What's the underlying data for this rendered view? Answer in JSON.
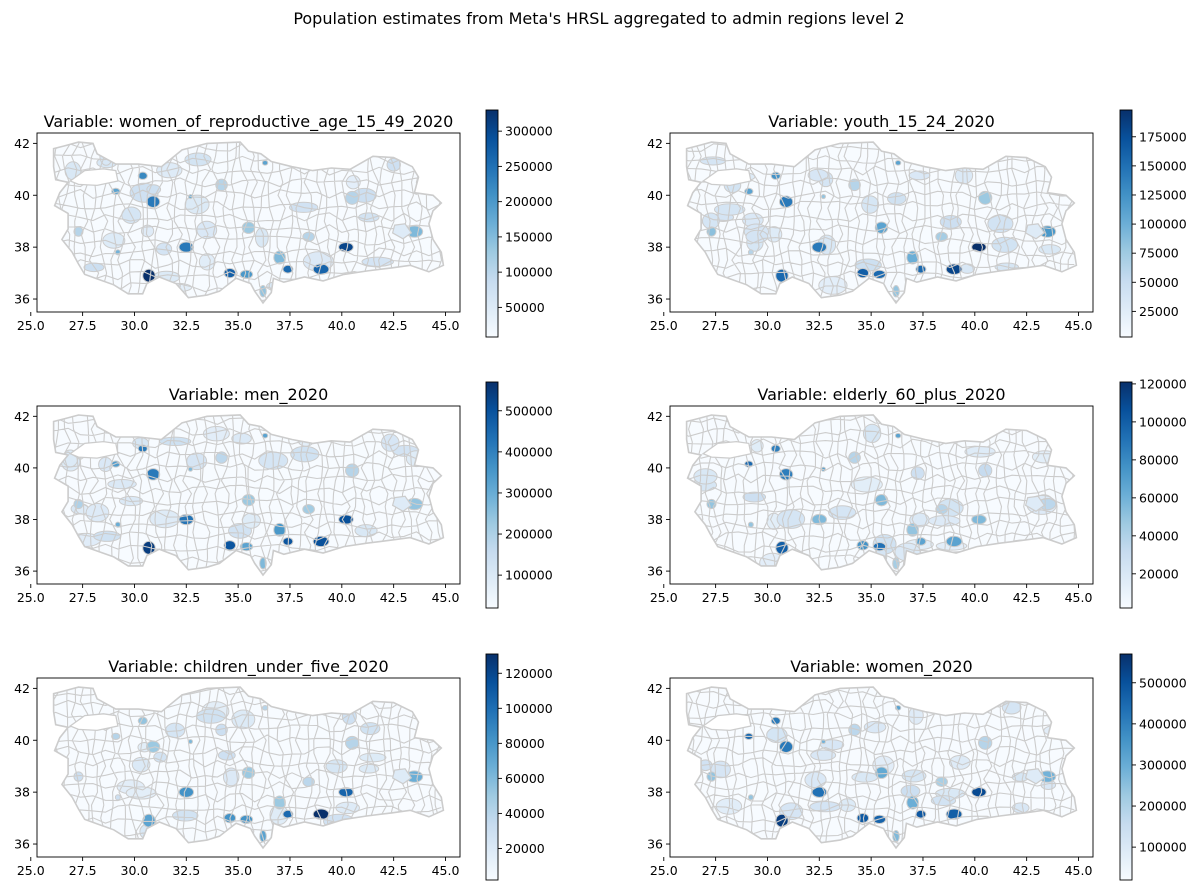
{
  "figure": {
    "title": "Population estimates from Meta's HRSL aggregated to admin regions level 2"
  },
  "colormap": {
    "name": "Blues",
    "stops": [
      "#f7fbff",
      "#deebf7",
      "#c6dbef",
      "#9ecae1",
      "#6baed6",
      "#4292c6",
      "#2171b5",
      "#08519c",
      "#08306b"
    ]
  },
  "style": {
    "boundary_color": "#cccccc",
    "axes_color": "#000000"
  },
  "map_axes": {
    "xticks": [
      25.0,
      27.5,
      30.0,
      32.5,
      35.0,
      37.5,
      40.0,
      42.5,
      45.0
    ],
    "xtick_labels": [
      "25.0",
      "27.5",
      "30.0",
      "32.5",
      "35.0",
      "37.5",
      "40.0",
      "42.5",
      "45.0"
    ],
    "xlim": [
      25.3,
      45.7
    ],
    "yticks": [
      36,
      38,
      40,
      42
    ],
    "ytick_labels": [
      "36",
      "38",
      "40",
      "42"
    ],
    "ylim": [
      35.5,
      42.4
    ]
  },
  "panels": [
    {
      "title": "Variable: women_of_reproductive_age_15_49_2020",
      "vmin": 8000,
      "vmax": 330000,
      "cb_ticks": [
        50000,
        100000,
        150000,
        200000,
        250000,
        300000
      ],
      "cb_tick_labels": [
        "50000",
        "100000",
        "150000",
        "200000",
        "250000",
        "300000"
      ]
    },
    {
      "title": "Variable: youth_15_24_2020",
      "vmin": 3000,
      "vmax": 198000,
      "cb_ticks": [
        25000,
        50000,
        75000,
        100000,
        125000,
        150000,
        175000
      ],
      "cb_tick_labels": [
        "25000",
        "50000",
        "75000",
        "100000",
        "125000",
        "150000",
        "175000"
      ]
    },
    {
      "title": "Variable: men_2020",
      "vmin": 20000,
      "vmax": 570000,
      "cb_ticks": [
        100000,
        200000,
        300000,
        400000,
        500000
      ],
      "cb_tick_labels": [
        "100000",
        "200000",
        "300000",
        "400000",
        "500000"
      ]
    },
    {
      "title": "Variable: elderly_60_plus_2020",
      "vmin": 2000,
      "vmax": 121000,
      "cb_ticks": [
        20000,
        40000,
        60000,
        80000,
        100000,
        120000
      ],
      "cb_tick_labels": [
        "20000",
        "40000",
        "60000",
        "80000",
        "100000",
        "120000"
      ]
    },
    {
      "title": "Variable: children_under_five_2020",
      "vmin": 2000,
      "vmax": 131000,
      "cb_ticks": [
        20000,
        40000,
        60000,
        80000,
        100000,
        120000
      ],
      "cb_tick_labels": [
        "20000",
        "40000",
        "60000",
        "80000",
        "100000",
        "120000"
      ]
    },
    {
      "title": "Variable: women_2020",
      "vmin": 20000,
      "vmax": 570000,
      "cb_ticks": [
        100000,
        200000,
        300000,
        400000,
        500000
      ],
      "cb_tick_labels": [
        "100000",
        "200000",
        "300000",
        "400000",
        "500000"
      ]
    }
  ]
}
